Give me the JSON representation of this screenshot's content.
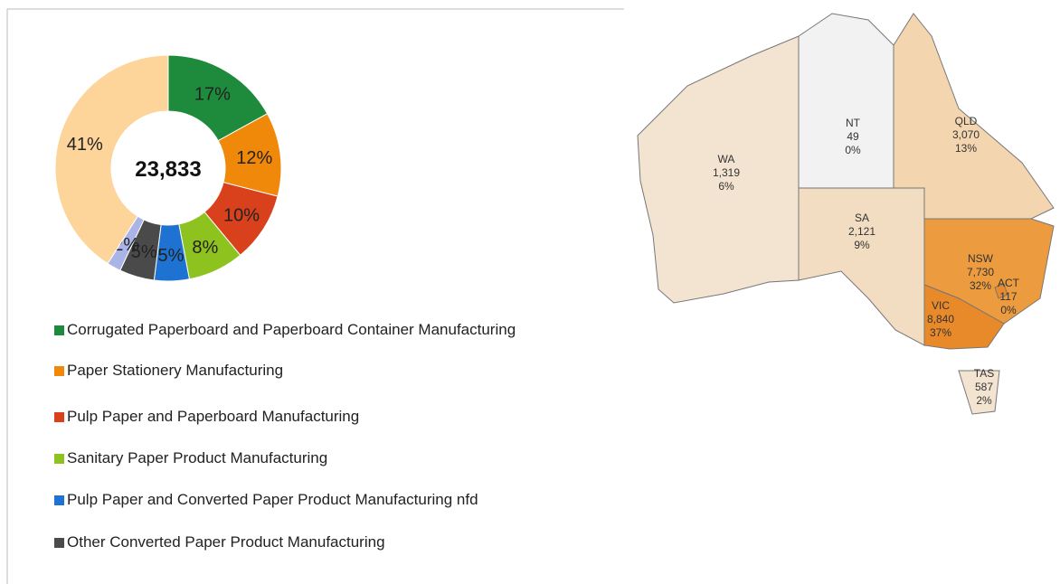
{
  "chart_data": [
    {
      "type": "pie",
      "center_label": "23,833",
      "categories": [
        "Corrugated Paperboard and Paperboard Container Manufacturing",
        "Paper Stationery Manufacturing",
        "Pulp Paper and Paperboard Manufacturing",
        "Sanitary Paper Product Manufacturing",
        "Pulp Paper and Converted Paper Product Manufacturing nfd",
        "Other Converted Paper Product Manufacturing",
        null,
        null
      ],
      "values": [
        17,
        12,
        10,
        8,
        5,
        5,
        2,
        41
      ],
      "value_labels": [
        "17%",
        "12%",
        "10%",
        "8%",
        "5%",
        "5%",
        "2%",
        "41%"
      ],
      "colors": [
        "#1e8a3c",
        "#f0880a",
        "#d9401c",
        "#8dc21f",
        "#1e73d2",
        "#4a4a4a",
        "#aab4e6",
        "#fdd49a"
      ]
    },
    {
      "type": "map",
      "regions": [
        "WA",
        "NT",
        "QLD",
        "SA",
        "NSW",
        "ACT",
        "VIC",
        "TAS"
      ],
      "values": [
        1319,
        49,
        3070,
        2121,
        7730,
        117,
        8840,
        587
      ],
      "value_labels": [
        "1,319",
        "49",
        "3,070",
        "2,121",
        "7,730",
        "117",
        "8,840",
        "587"
      ],
      "percent": [
        6,
        0,
        13,
        9,
        32,
        0,
        37,
        2
      ],
      "percent_labels": [
        "6%",
        "0%",
        "13%",
        "9%",
        "32%",
        "0%",
        "37%",
        "2%"
      ],
      "colors": [
        "#f3e4d2",
        "#f2f2f2",
        "#f3d5b0",
        "#f2dcc2",
        "#ec9b3e",
        "#e98b2c",
        "#e8892a",
        "#f3e4d2"
      ]
    }
  ]
}
